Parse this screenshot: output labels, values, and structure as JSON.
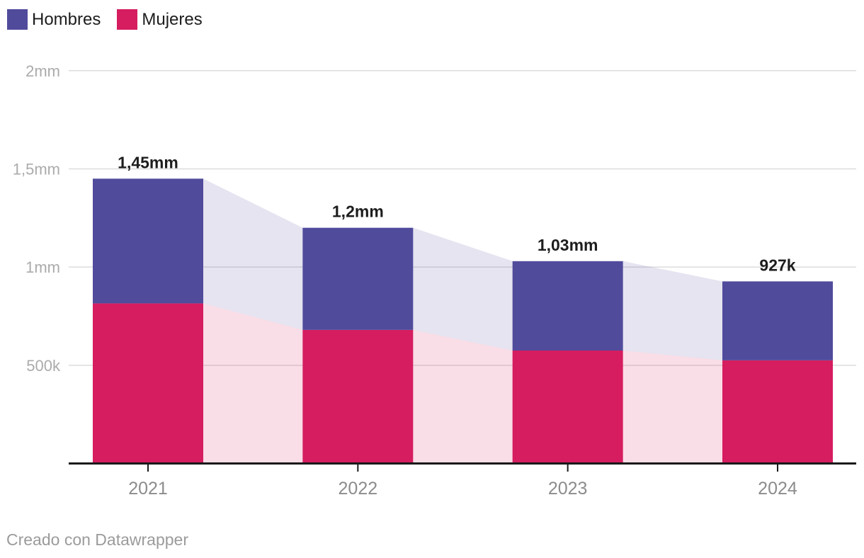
{
  "chart_data": {
    "type": "bar",
    "stacked": true,
    "variant": "stacked-columns-with-area-connectors",
    "title": "",
    "xlabel": "",
    "ylabel": "",
    "categories": [
      "2021",
      "2022",
      "2023",
      "2024"
    ],
    "series": [
      {
        "name": "Hombres",
        "color": "#514b9c",
        "values": [
          635000,
          520000,
          455000,
          402000
        ]
      },
      {
        "name": "Mujeres",
        "color": "#d51d5f",
        "values": [
          815000,
          680000,
          575000,
          525000
        ]
      }
    ],
    "stack_order_bottom_to_top": [
      "Mujeres",
      "Hombres"
    ],
    "totals": [
      1450000,
      1200000,
      1030000,
      927000
    ],
    "total_labels": [
      "1,45mm",
      "1,2mm",
      "1,03mm",
      "927k"
    ],
    "y_ticks": [
      {
        "value": 500000,
        "label": "500k"
      },
      {
        "value": 1000000,
        "label": "1mm"
      },
      {
        "value": 1500000,
        "label": "1,5mm"
      },
      {
        "value": 2000000,
        "label": "2mm"
      }
    ],
    "ylim": [
      0,
      2000000
    ],
    "grid": true,
    "connector_opacity": 0.15,
    "legend_position": "top-left"
  },
  "legend": {
    "items": [
      {
        "label": "Hombres",
        "color": "#514b9c"
      },
      {
        "label": "Mujeres",
        "color": "#d51d5f"
      }
    ]
  },
  "footer": {
    "credit": "Creado con Datawrapper"
  },
  "colors": {
    "background": "#ffffff",
    "grid": "#dcdcdc",
    "axis": "#1a1a1a",
    "tick_label": "#ababab",
    "category_label": "#8c8c8c",
    "value_label": "#1d1d1d",
    "footer_text": "#9b9b9b"
  }
}
